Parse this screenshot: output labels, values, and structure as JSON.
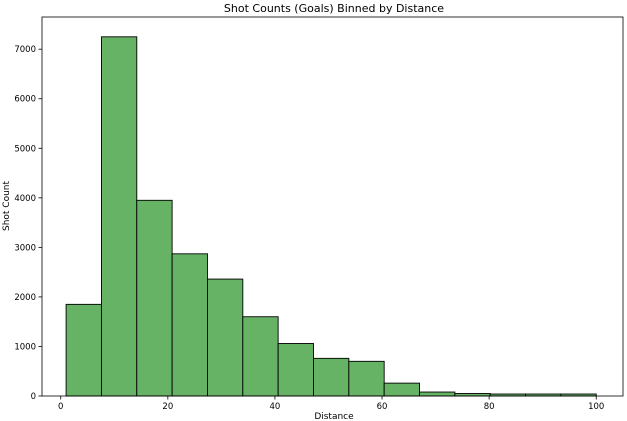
{
  "chart_data": {
    "type": "bar",
    "title": "Shot Counts (Goals) Binned by Distance",
    "xlabel": "Distance",
    "ylabel": "Shot Count",
    "xlim": [
      -3.5,
      105
    ],
    "ylim": [
      0,
      7650
    ],
    "x_ticks": [
      0,
      20,
      40,
      60,
      80,
      100
    ],
    "y_ticks": [
      0,
      1000,
      2000,
      3000,
      4000,
      5000,
      6000,
      7000
    ],
    "bin_edges": [
      1,
      7.6,
      14.2,
      20.8,
      27.4,
      34.0,
      40.6,
      47.2,
      53.8,
      60.4,
      67.0,
      73.6,
      80.2,
      86.8,
      93.4,
      100
    ],
    "values": [
      1850,
      7250,
      3950,
      2870,
      2360,
      1600,
      1060,
      760,
      700,
      260,
      80,
      50,
      40,
      40,
      40
    ],
    "bar_color": "#66b366",
    "edge_color": "#000000",
    "grid": false
  }
}
